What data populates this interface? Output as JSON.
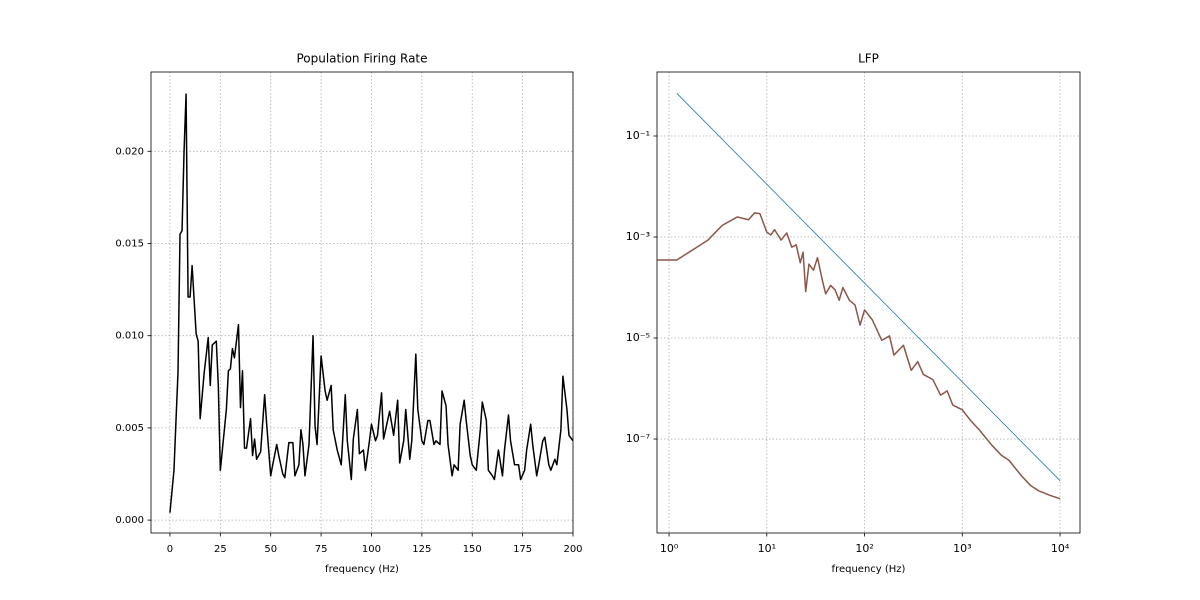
{
  "chart_data": [
    {
      "type": "line",
      "title": "Population Firing Rate",
      "xlabel": "frequency (Hz)",
      "grid": true,
      "xlim": [
        -9.4,
        200
      ],
      "ylim": [
        -0.0007,
        0.0243
      ],
      "xticks": [
        0,
        25,
        50,
        75,
        100,
        125,
        150,
        175,
        200
      ],
      "yticks": [
        {
          "value": 0,
          "label": "0.000"
        },
        0.005,
        {
          "value": 0.01,
          "label": "0.010"
        },
        0.015,
        {
          "value": 0.02,
          "label": "0.020"
        }
      ],
      "series": [
        {
          "color": "#000000",
          "x": [
            0,
            2,
            3,
            4,
            5,
            6,
            7,
            8,
            9,
            10,
            11,
            13,
            14,
            15,
            17,
            19,
            20,
            21,
            23,
            24,
            25,
            26,
            28,
            29,
            30,
            31,
            32,
            34,
            35,
            36,
            37,
            38,
            40,
            41,
            42,
            43,
            45,
            47,
            48,
            50,
            51,
            53,
            54,
            56,
            57,
            59,
            61,
            62,
            64,
            65,
            66,
            67,
            69,
            71,
            72,
            73,
            75,
            77,
            78,
            80,
            81,
            83,
            85,
            87,
            88,
            90,
            91,
            93,
            94,
            96,
            97,
            99,
            100,
            102,
            103,
            105,
            106,
            108,
            109,
            111,
            113,
            114,
            116,
            117,
            119,
            120,
            122,
            123,
            125,
            126,
            128,
            129,
            131,
            132,
            134,
            135,
            137,
            138,
            140,
            141,
            143,
            144,
            146,
            147,
            149,
            150,
            152,
            154,
            155,
            157,
            158,
            160,
            161,
            163,
            165,
            166,
            168,
            169,
            171,
            173,
            174,
            176,
            177,
            179,
            180,
            182,
            183,
            185,
            186,
            188,
            189,
            191,
            192,
            194,
            195,
            197,
            198,
            200
          ],
          "values": [
            0.0004,
            0.0027,
            0.0054,
            0.008,
            0.0155,
            0.0157,
            0.02,
            0.0231,
            0.0121,
            0.0121,
            0.0138,
            0.0101,
            0.0097,
            0.0055,
            0.008,
            0.0099,
            0.0073,
            0.0095,
            0.0097,
            0.0073,
            0.0027,
            0.0038,
            0.006,
            0.0081,
            0.0082,
            0.0093,
            0.0088,
            0.0106,
            0.0061,
            0.0081,
            0.0039,
            0.0039,
            0.0055,
            0.0035,
            0.0044,
            0.0033,
            0.0037,
            0.0068,
            0.0052,
            0.0024,
            0.003,
            0.0041,
            0.0035,
            0.0025,
            0.0023,
            0.0042,
            0.0042,
            0.0024,
            0.003,
            0.0049,
            0.0041,
            0.0024,
            0.0041,
            0.01,
            0.0051,
            0.0041,
            0.0089,
            0.007,
            0.0065,
            0.0073,
            0.0049,
            0.0038,
            0.003,
            0.0068,
            0.0043,
            0.0022,
            0.0044,
            0.006,
            0.0036,
            0.0038,
            0.0027,
            0.0043,
            0.0052,
            0.0043,
            0.0046,
            0.0069,
            0.0044,
            0.0054,
            0.0059,
            0.0046,
            0.0065,
            0.0031,
            0.0043,
            0.006,
            0.0033,
            0.0043,
            0.009,
            0.006,
            0.0043,
            0.0041,
            0.0054,
            0.0054,
            0.0041,
            0.0043,
            0.0041,
            0.007,
            0.0062,
            0.0041,
            0.0024,
            0.003,
            0.0027,
            0.0052,
            0.0065,
            0.0054,
            0.0035,
            0.003,
            0.0027,
            0.0049,
            0.0064,
            0.0054,
            0.0027,
            0.0024,
            0.0022,
            0.0038,
            0.0024,
            0.0038,
            0.0057,
            0.0043,
            0.003,
            0.003,
            0.0022,
            0.0027,
            0.0038,
            0.0052,
            0.0041,
            0.0024,
            0.003,
            0.0043,
            0.0045,
            0.003,
            0.0027,
            0.0033,
            0.003,
            0.0049,
            0.0078,
            0.006,
            0.0046,
            0.0043
          ]
        }
      ]
    },
    {
      "type": "line",
      "title": "LFP",
      "xlabel": "frequency (Hz)",
      "grid": true,
      "log_x": true,
      "log_y": true,
      "xlim": [
        0.753,
        16000
      ],
      "ylim": [
        1.38e-09,
        1.85
      ],
      "xticks": [
        {
          "value": 1,
          "label": "10⁰"
        },
        {
          "value": 10,
          "label": "10¹"
        },
        {
          "value": 100,
          "label": "10²"
        },
        {
          "value": 1000,
          "label": "10³"
        },
        {
          "value": 10000,
          "label": "10⁴"
        }
      ],
      "yticks": [
        {
          "value": 1e-07,
          "label": "10⁻⁷"
        },
        {
          "value": 1e-05,
          "label": "10⁻⁵"
        },
        {
          "value": 0.001,
          "label": "10⁻³"
        },
        {
          "value": 0.1,
          "label": "10⁻¹"
        }
      ],
      "series": [
        {
          "color": "#1f77b4",
          "x": [
            1.2,
            10000
          ],
          "values": [
            0.7,
            1.5e-08
          ]
        },
        {
          "color": "#8c564b",
          "x": [
            0.76,
            1.2,
            2.5,
            3.5,
            5,
            6.5,
            7.5,
            8.5,
            10,
            11,
            12,
            14,
            16,
            18,
            20,
            22,
            23.5,
            25,
            27,
            30,
            33,
            37,
            40,
            45,
            50,
            55,
            60,
            70,
            80,
            90,
            100,
            120,
            150,
            180,
            200,
            250,
            300,
            350,
            400,
            500,
            600,
            700,
            800,
            1000,
            1200,
            1500,
            2000,
            2500,
            3000,
            4000,
            5000,
            6000,
            8000,
            10000
          ],
          "values": [
            0.00035,
            0.00035,
            0.00087,
            0.0017,
            0.0025,
            0.0022,
            0.003,
            0.0029,
            0.00125,
            0.0011,
            0.0014,
            0.00087,
            0.0012,
            0.00063,
            0.0007,
            0.00031,
            0.0005,
            8.3e-05,
            0.00029,
            0.00022,
            0.00039,
            0.00014,
            7.5e-05,
            0.00011,
            9e-05,
            5.6e-05,
            0.0001,
            5.6e-05,
            4.5e-05,
            1.8e-05,
            3.6e-05,
            2.3e-05,
            9e-06,
            1.1e-05,
            4.6e-06,
            7.2e-06,
            2.3e-06,
            3.4e-06,
            1.9e-06,
            1.5e-06,
            7.4e-07,
            9e-07,
            4.7e-07,
            3.8e-07,
            2.4e-07,
            1.5e-07,
            7.6e-08,
            4.8e-08,
            3.8e-08,
            1.9e-08,
            1.2e-08,
            9.5e-09,
            7.6e-09,
            6.6e-09
          ]
        }
      ]
    }
  ]
}
